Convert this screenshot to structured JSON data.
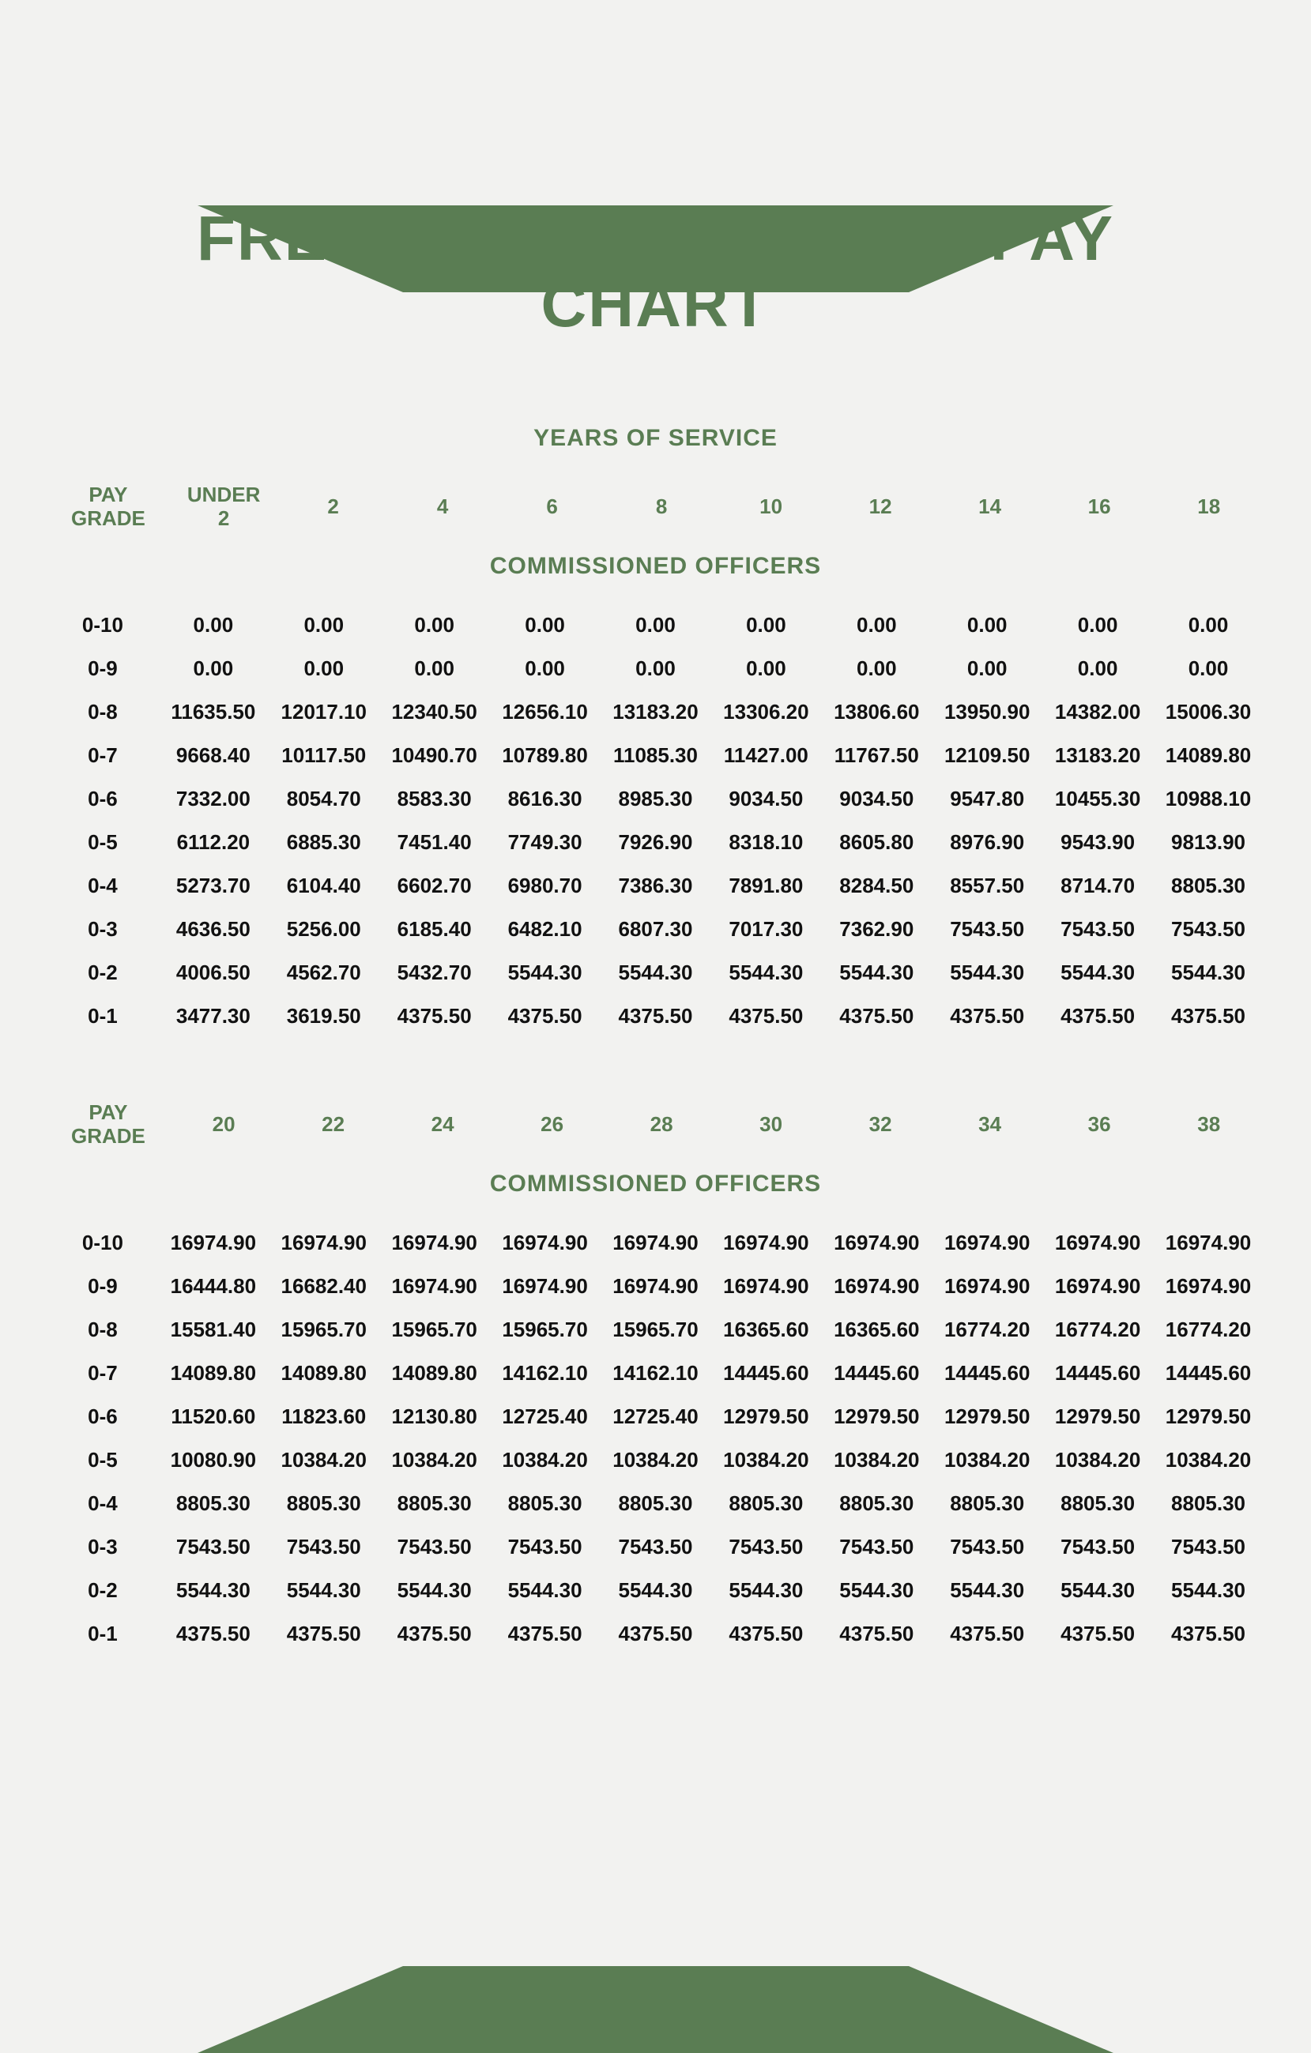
{
  "colors": {
    "brand": "#5a7d53",
    "background": "#f2f2f0",
    "text": "#111111"
  },
  "title": "FREE YEARLY MILITARY PAY CHART",
  "subtitle": "YEARS OF SERVICE",
  "section_label": "COMMISSIONED OFFICERS",
  "block1": {
    "headers": [
      "PAY GRADE",
      "UNDER 2",
      "2",
      "4",
      "6",
      "8",
      "10",
      "12",
      "14",
      "16",
      "18"
    ],
    "rows": [
      {
        "grade": "0-10",
        "cells": [
          "0.00",
          "0.00",
          "0.00",
          "0.00",
          "0.00",
          "0.00",
          "0.00",
          "0.00",
          "0.00",
          "0.00"
        ]
      },
      {
        "grade": "0-9",
        "cells": [
          "0.00",
          "0.00",
          "0.00",
          "0.00",
          "0.00",
          "0.00",
          "0.00",
          "0.00",
          "0.00",
          "0.00"
        ]
      },
      {
        "grade": "0-8",
        "cells": [
          "11635.50",
          "12017.10",
          "12340.50",
          "12656.10",
          "13183.20",
          "13306.20",
          "13806.60",
          "13950.90",
          "14382.00",
          "15006.30"
        ]
      },
      {
        "grade": "0-7",
        "cells": [
          "9668.40",
          "10117.50",
          "10490.70",
          "10789.80",
          "11085.30",
          "11427.00",
          "11767.50",
          "12109.50",
          "13183.20",
          "14089.80"
        ]
      },
      {
        "grade": "0-6",
        "cells": [
          "7332.00",
          "8054.70",
          "8583.30",
          "8616.30",
          "8985.30",
          "9034.50",
          "9034.50",
          "9547.80",
          "10455.30",
          "10988.10"
        ]
      },
      {
        "grade": "0-5",
        "cells": [
          "6112.20",
          "6885.30",
          "7451.40",
          "7749.30",
          "7926.90",
          "8318.10",
          "8605.80",
          "8976.90",
          "9543.90",
          "9813.90"
        ]
      },
      {
        "grade": "0-4",
        "cells": [
          "5273.70",
          "6104.40",
          "6602.70",
          "6980.70",
          "7386.30",
          "7891.80",
          "8284.50",
          "8557.50",
          "8714.70",
          "8805.30"
        ]
      },
      {
        "grade": "0-3",
        "cells": [
          "4636.50",
          "5256.00",
          "6185.40",
          "6482.10",
          "6807.30",
          "7017.30",
          "7362.90",
          "7543.50",
          "7543.50",
          "7543.50"
        ]
      },
      {
        "grade": "0-2",
        "cells": [
          "4006.50",
          "4562.70",
          "5432.70",
          "5544.30",
          "5544.30",
          "5544.30",
          "5544.30",
          "5544.30",
          "5544.30",
          "5544.30"
        ]
      },
      {
        "grade": "0-1",
        "cells": [
          "3477.30",
          "3619.50",
          "4375.50",
          "4375.50",
          "4375.50",
          "4375.50",
          "4375.50",
          "4375.50",
          "4375.50",
          "4375.50"
        ]
      }
    ]
  },
  "block2": {
    "headers": [
      "PAY GRADE",
      "20",
      "22",
      "24",
      "26",
      "28",
      "30",
      "32",
      "34",
      "36",
      "38"
    ],
    "rows": [
      {
        "grade": "0-10",
        "cells": [
          "16974.90",
          "16974.90",
          "16974.90",
          "16974.90",
          "16974.90",
          "16974.90",
          "16974.90",
          "16974.90",
          "16974.90",
          "16974.90"
        ]
      },
      {
        "grade": "0-9",
        "cells": [
          "16444.80",
          "16682.40",
          "16974.90",
          "16974.90",
          "16974.90",
          "16974.90",
          "16974.90",
          "16974.90",
          "16974.90",
          "16974.90"
        ]
      },
      {
        "grade": "0-8",
        "cells": [
          "15581.40",
          "15965.70",
          "15965.70",
          "15965.70",
          "15965.70",
          "16365.60",
          "16365.60",
          "16774.20",
          "16774.20",
          "16774.20"
        ]
      },
      {
        "grade": "0-7",
        "cells": [
          "14089.80",
          "14089.80",
          "14089.80",
          "14162.10",
          "14162.10",
          "14445.60",
          "14445.60",
          "14445.60",
          "14445.60",
          "14445.60"
        ]
      },
      {
        "grade": "0-6",
        "cells": [
          "11520.60",
          "11823.60",
          "12130.80",
          "12725.40",
          "12725.40",
          "12979.50",
          "12979.50",
          "12979.50",
          "12979.50",
          "12979.50"
        ]
      },
      {
        "grade": "0-5",
        "cells": [
          "10080.90",
          "10384.20",
          "10384.20",
          "10384.20",
          "10384.20",
          "10384.20",
          "10384.20",
          "10384.20",
          "10384.20",
          "10384.20"
        ]
      },
      {
        "grade": "0-4",
        "cells": [
          "8805.30",
          "8805.30",
          "8805.30",
          "8805.30",
          "8805.30",
          "8805.30",
          "8805.30",
          "8805.30",
          "8805.30",
          "8805.30"
        ]
      },
      {
        "grade": "0-3",
        "cells": [
          "7543.50",
          "7543.50",
          "7543.50",
          "7543.50",
          "7543.50",
          "7543.50",
          "7543.50",
          "7543.50",
          "7543.50",
          "7543.50"
        ]
      },
      {
        "grade": "0-2",
        "cells": [
          "5544.30",
          "5544.30",
          "5544.30",
          "5544.30",
          "5544.30",
          "5544.30",
          "5544.30",
          "5544.30",
          "5544.30",
          "5544.30"
        ]
      },
      {
        "grade": "0-1",
        "cells": [
          "4375.50",
          "4375.50",
          "4375.50",
          "4375.50",
          "4375.50",
          "4375.50",
          "4375.50",
          "4375.50",
          "4375.50",
          "4375.50"
        ]
      }
    ]
  }
}
